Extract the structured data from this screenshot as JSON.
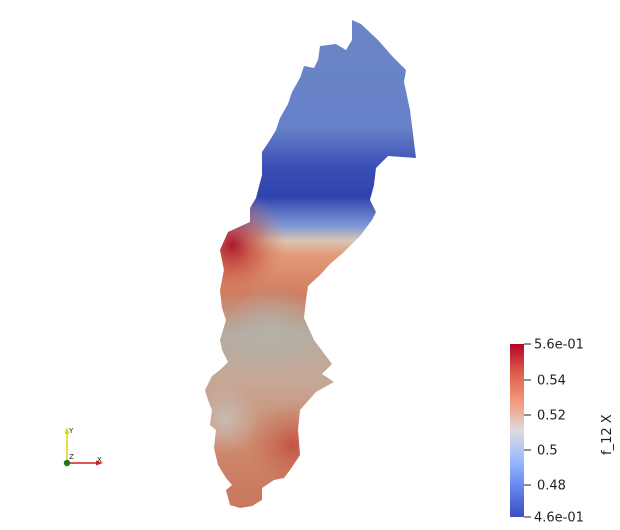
{
  "colorbar": {
    "title": "f_12 X",
    "max_label": "5.6e-01",
    "min_label": "4.6e-01",
    "ticks": [
      "0.54",
      "0.52",
      "0.5",
      "0.48"
    ],
    "colors": [
      "#b40426",
      "#dd5f4b",
      "#f4987a",
      "#dddcdc",
      "#9abbff",
      "#6485ec",
      "#3b4cc0"
    ]
  },
  "axes_widget": {
    "x_label": "X",
    "y_label": "Y",
    "z_label": "Z",
    "x_color": "#cc2222",
    "y_color": "#e5d200",
    "z_color": "#1c7a1c"
  }
}
